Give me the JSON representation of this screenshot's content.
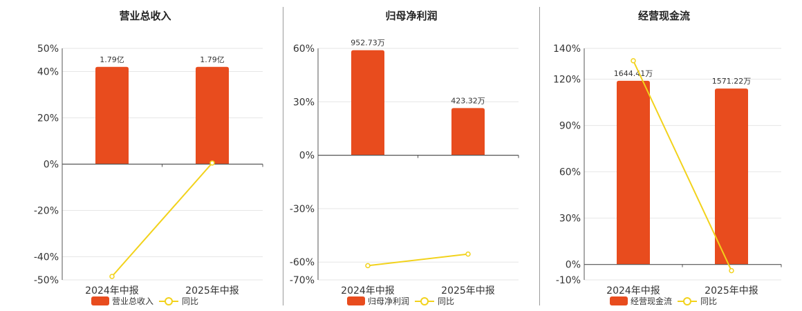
{
  "colors": {
    "bar": "#e84c1e",
    "line": "#f2d21b",
    "grid": "#e6e6e6",
    "axis": "#555555"
  },
  "chart_data": [
    {
      "type": "bar",
      "title": "营业总收入",
      "categories": [
        "2024年中报",
        "2025年中报"
      ],
      "series": [
        {
          "name": "营业总收入",
          "kind": "bar",
          "values": [
            42,
            42
          ],
          "labels": [
            "1.79亿",
            "1.79亿"
          ]
        },
        {
          "name": "同比",
          "kind": "line",
          "values": [
            -48.5,
            0.5
          ]
        }
      ],
      "ylim": [
        -50,
        50
      ],
      "yticks": [
        -50,
        -40,
        -20,
        0,
        20,
        40,
        50
      ],
      "ytick_labels": [
        "-50%",
        "-40%",
        "-20%",
        "0%",
        "20%",
        "40%",
        "50%"
      ],
      "legend": {
        "bar": "营业总收入",
        "line": "同比",
        "position": "bottom"
      },
      "grid": true
    },
    {
      "type": "bar",
      "title": "归母净利润",
      "categories": [
        "2024年中报",
        "2025年中报"
      ],
      "series": [
        {
          "name": "归母净利润",
          "kind": "bar",
          "values": [
            59,
            26.5
          ],
          "labels": [
            "952.73万",
            "423.32万"
          ]
        },
        {
          "name": "同比",
          "kind": "line",
          "values": [
            -62,
            -55.5
          ]
        }
      ],
      "ylim": [
        -70,
        60
      ],
      "yticks": [
        -70,
        -60,
        -30,
        0,
        30,
        60
      ],
      "ytick_labels": [
        "-70%",
        "-60%",
        "-30%",
        "0%",
        "30%",
        "60%"
      ],
      "legend": {
        "bar": "归母净利润",
        "line": "同比",
        "position": "bottom"
      },
      "grid": true
    },
    {
      "type": "bar",
      "title": "经营现金流",
      "categories": [
        "2024年中报",
        "2025年中报"
      ],
      "series": [
        {
          "name": "经营现金流",
          "kind": "bar",
          "values": [
            119,
            114
          ],
          "labels": [
            "1644.41万",
            "1571.22万"
          ]
        },
        {
          "name": "同比",
          "kind": "line",
          "values": [
            132,
            -4
          ]
        }
      ],
      "ylim": [
        -10,
        140
      ],
      "yticks": [
        -10,
        0,
        30,
        60,
        90,
        120,
        140
      ],
      "ytick_labels": [
        "-10%",
        "0%",
        "30%",
        "60%",
        "90%",
        "120%",
        "140%"
      ],
      "legend": {
        "bar": "经营现金流",
        "line": "同比",
        "position": "bottom"
      },
      "grid": true
    }
  ]
}
